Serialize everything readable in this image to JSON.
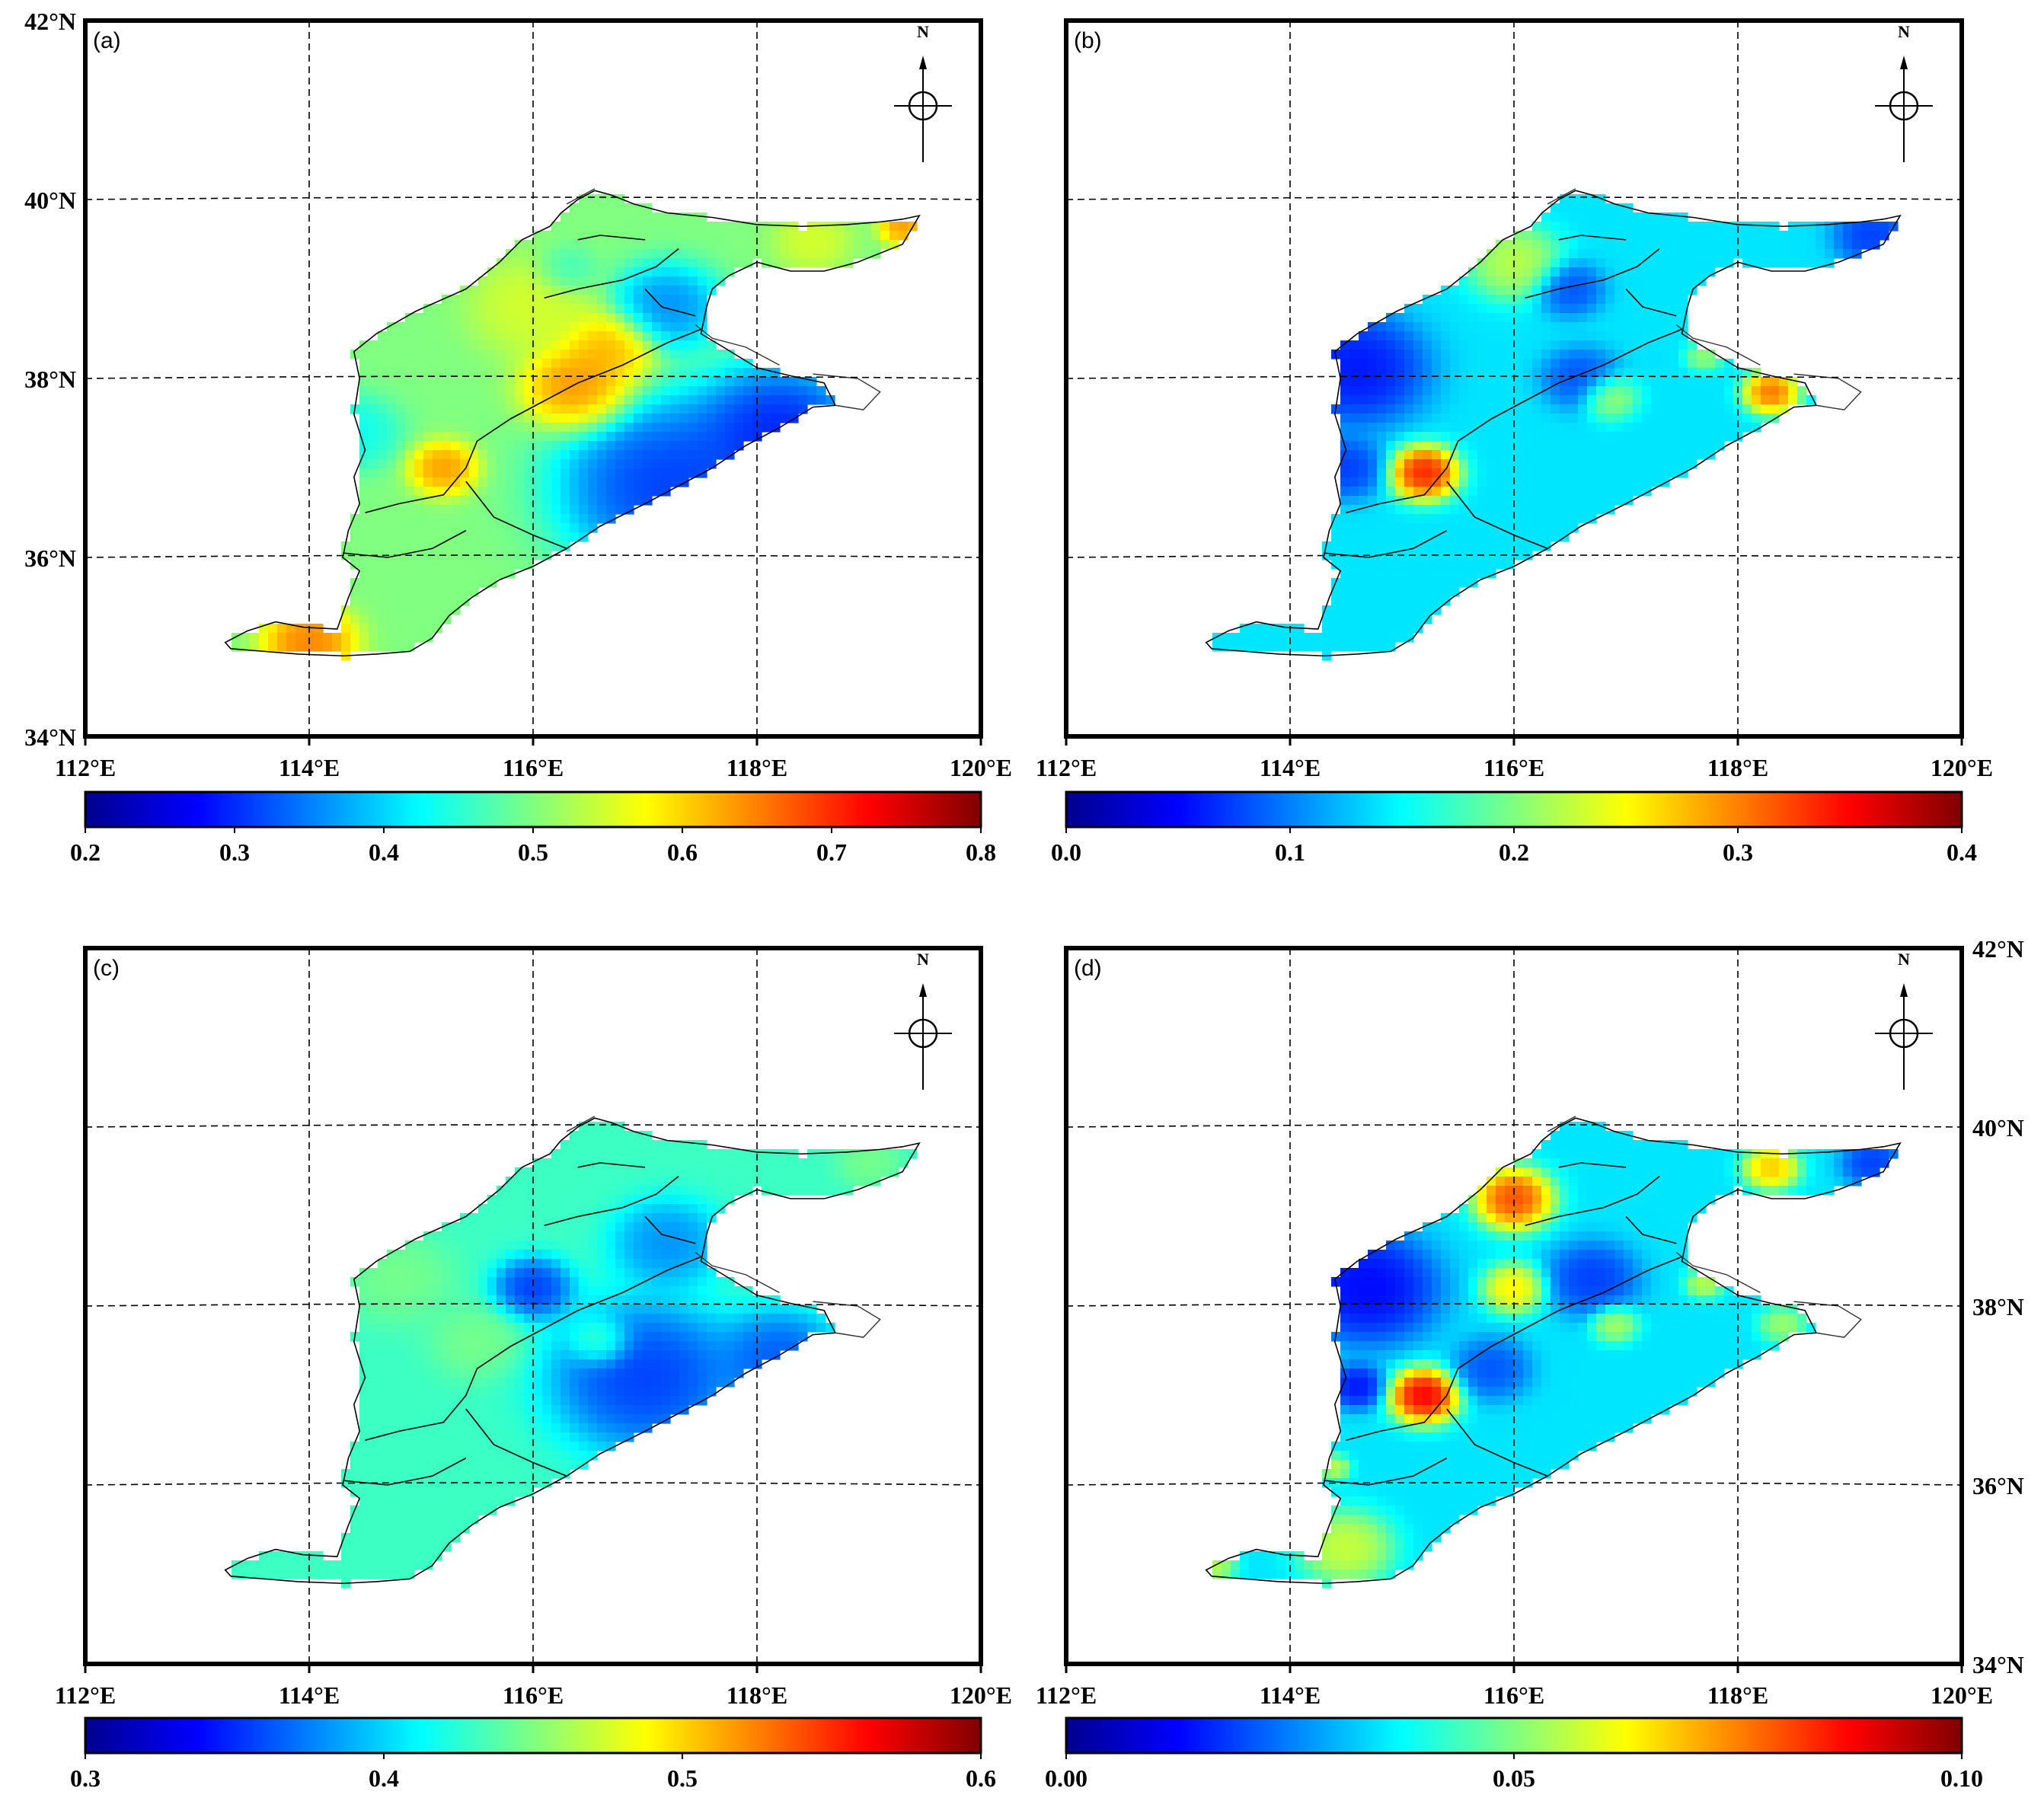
{
  "panels": [
    {
      "label": "(a)",
      "colorbar": {
        "min": 0.2,
        "max": 0.8,
        "ticks": [
          "0.2",
          "0.3",
          "0.4",
          "0.5",
          "0.6",
          "0.7",
          "0.8"
        ]
      },
      "lat_labels_left": true,
      "lat_labels_right": false,
      "lon_labels": true,
      "base_level": 0.5,
      "hotspots": [
        {
          "lon": 116.4,
          "lat": 37.9,
          "v": 0.67,
          "r": 0.35
        },
        {
          "lon": 116.7,
          "lat": 38.35,
          "v": 0.64,
          "r": 0.3
        },
        {
          "lon": 115.2,
          "lat": 37.0,
          "v": 0.66,
          "r": 0.22
        },
        {
          "lon": 114.0,
          "lat": 35.05,
          "v": 0.68,
          "r": 0.3
        },
        {
          "lon": 119.3,
          "lat": 39.7,
          "v": 0.66,
          "r": 0.15
        },
        {
          "lon": 118.5,
          "lat": 39.55,
          "v": 0.56,
          "r": 0.25
        },
        {
          "lon": 116.0,
          "lat": 38.8,
          "v": 0.56,
          "r": 0.4
        },
        {
          "lon": 117.2,
          "lat": 36.8,
          "v": 0.27,
          "r": 0.7
        },
        {
          "lon": 118.2,
          "lat": 37.4,
          "v": 0.25,
          "r": 0.55
        },
        {
          "lon": 117.2,
          "lat": 38.8,
          "v": 0.33,
          "r": 0.35
        },
        {
          "lon": 114.4,
          "lat": 37.4,
          "v": 0.42,
          "r": 0.3
        },
        {
          "lon": 116.3,
          "lat": 39.2,
          "v": 0.45,
          "r": 0.2
        }
      ]
    },
    {
      "label": "(b)",
      "colorbar": {
        "min": 0.0,
        "max": 0.4,
        "ticks": [
          "0.0",
          "0.1",
          "0.2",
          "0.3",
          "0.4"
        ]
      },
      "lat_labels_left": false,
      "lat_labels_right": false,
      "lon_labels": true,
      "base_level": 0.14,
      "hotspots": [
        {
          "lon": 115.2,
          "lat": 36.95,
          "v": 0.38,
          "r": 0.22
        },
        {
          "lon": 118.3,
          "lat": 37.85,
          "v": 0.34,
          "r": 0.18
        },
        {
          "lon": 116.0,
          "lat": 39.3,
          "v": 0.24,
          "r": 0.3
        },
        {
          "lon": 116.85,
          "lat": 37.8,
          "v": 0.23,
          "r": 0.18
        },
        {
          "lon": 117.7,
          "lat": 38.25,
          "v": 0.22,
          "r": 0.12
        },
        {
          "lon": 114.6,
          "lat": 38.1,
          "v": 0.04,
          "r": 0.45
        },
        {
          "lon": 114.5,
          "lat": 37.0,
          "v": 0.06,
          "r": 0.25
        },
        {
          "lon": 119.2,
          "lat": 39.6,
          "v": 0.06,
          "r": 0.25
        },
        {
          "lon": 116.6,
          "lat": 38.0,
          "v": 0.07,
          "r": 0.25
        },
        {
          "lon": 116.5,
          "lat": 39.0,
          "v": 0.07,
          "r": 0.22
        }
      ]
    },
    {
      "label": "(c)",
      "colorbar": {
        "min": 0.3,
        "max": 0.6,
        "ticks": [
          "0.3",
          "0.4",
          "0.5",
          "0.6"
        ]
      },
      "lat_labels_left": false,
      "lat_labels_right": false,
      "lon_labels": true,
      "base_level": 0.43,
      "hotspots": [
        {
          "lon": 116.0,
          "lat": 38.2,
          "v": 0.34,
          "r": 0.25
        },
        {
          "lon": 117.0,
          "lat": 37.2,
          "v": 0.34,
          "r": 0.6
        },
        {
          "lon": 118.2,
          "lat": 37.4,
          "v": 0.35,
          "r": 0.4
        },
        {
          "lon": 117.2,
          "lat": 38.7,
          "v": 0.37,
          "r": 0.35
        },
        {
          "lon": 115.5,
          "lat": 37.6,
          "v": 0.45,
          "r": 0.3
        },
        {
          "lon": 114.8,
          "lat": 38.3,
          "v": 0.45,
          "r": 0.35
        },
        {
          "lon": 116.6,
          "lat": 37.6,
          "v": 0.45,
          "r": 0.2
        },
        {
          "lon": 119.0,
          "lat": 39.6,
          "v": 0.45,
          "r": 0.2
        }
      ]
    },
    {
      "label": "(d)",
      "colorbar": {
        "min": 0.0,
        "max": 0.1,
        "ticks": [
          "0.00",
          "0.05",
          "0.10"
        ]
      },
      "lat_labels_left": false,
      "lat_labels_right": true,
      "lon_labels": true,
      "base_level": 0.035,
      "hotspots": [
        {
          "lon": 115.2,
          "lat": 37.0,
          "v": 0.1,
          "r": 0.22
        },
        {
          "lon": 116.0,
          "lat": 39.2,
          "v": 0.09,
          "r": 0.25
        },
        {
          "lon": 118.3,
          "lat": 39.55,
          "v": 0.075,
          "r": 0.18
        },
        {
          "lon": 116.0,
          "lat": 38.2,
          "v": 0.07,
          "r": 0.2
        },
        {
          "lon": 117.7,
          "lat": 38.25,
          "v": 0.06,
          "r": 0.12
        },
        {
          "lon": 116.9,
          "lat": 37.8,
          "v": 0.058,
          "r": 0.15
        },
        {
          "lon": 118.4,
          "lat": 37.8,
          "v": 0.056,
          "r": 0.15
        },
        {
          "lon": 114.5,
          "lat": 35.3,
          "v": 0.062,
          "r": 0.3
        },
        {
          "lon": 113.3,
          "lat": 35.1,
          "v": 0.06,
          "r": 0.15
        },
        {
          "lon": 114.4,
          "lat": 36.2,
          "v": 0.06,
          "r": 0.1
        },
        {
          "lon": 114.7,
          "lat": 38.2,
          "v": 0.008,
          "r": 0.45
        },
        {
          "lon": 114.6,
          "lat": 37.1,
          "v": 0.01,
          "r": 0.18
        },
        {
          "lon": 116.7,
          "lat": 38.3,
          "v": 0.015,
          "r": 0.3
        },
        {
          "lon": 119.2,
          "lat": 39.6,
          "v": 0.015,
          "r": 0.2
        },
        {
          "lon": 115.8,
          "lat": 37.3,
          "v": 0.018,
          "r": 0.25
        }
      ]
    }
  ],
  "lon_ticks": [
    "112°E",
    "114°E",
    "116°E",
    "118°E",
    "120°E"
  ],
  "lat_ticks": [
    "34°N",
    "36°N",
    "38°N",
    "40°N",
    "42°N"
  ],
  "north_arrow_label": "N",
  "colormap": [
    "#00008f",
    "#0000ff",
    "#0080ff",
    "#00ffff",
    "#80ff80",
    "#ffff00",
    "#ff8000",
    "#ff0000",
    "#800000"
  ]
}
